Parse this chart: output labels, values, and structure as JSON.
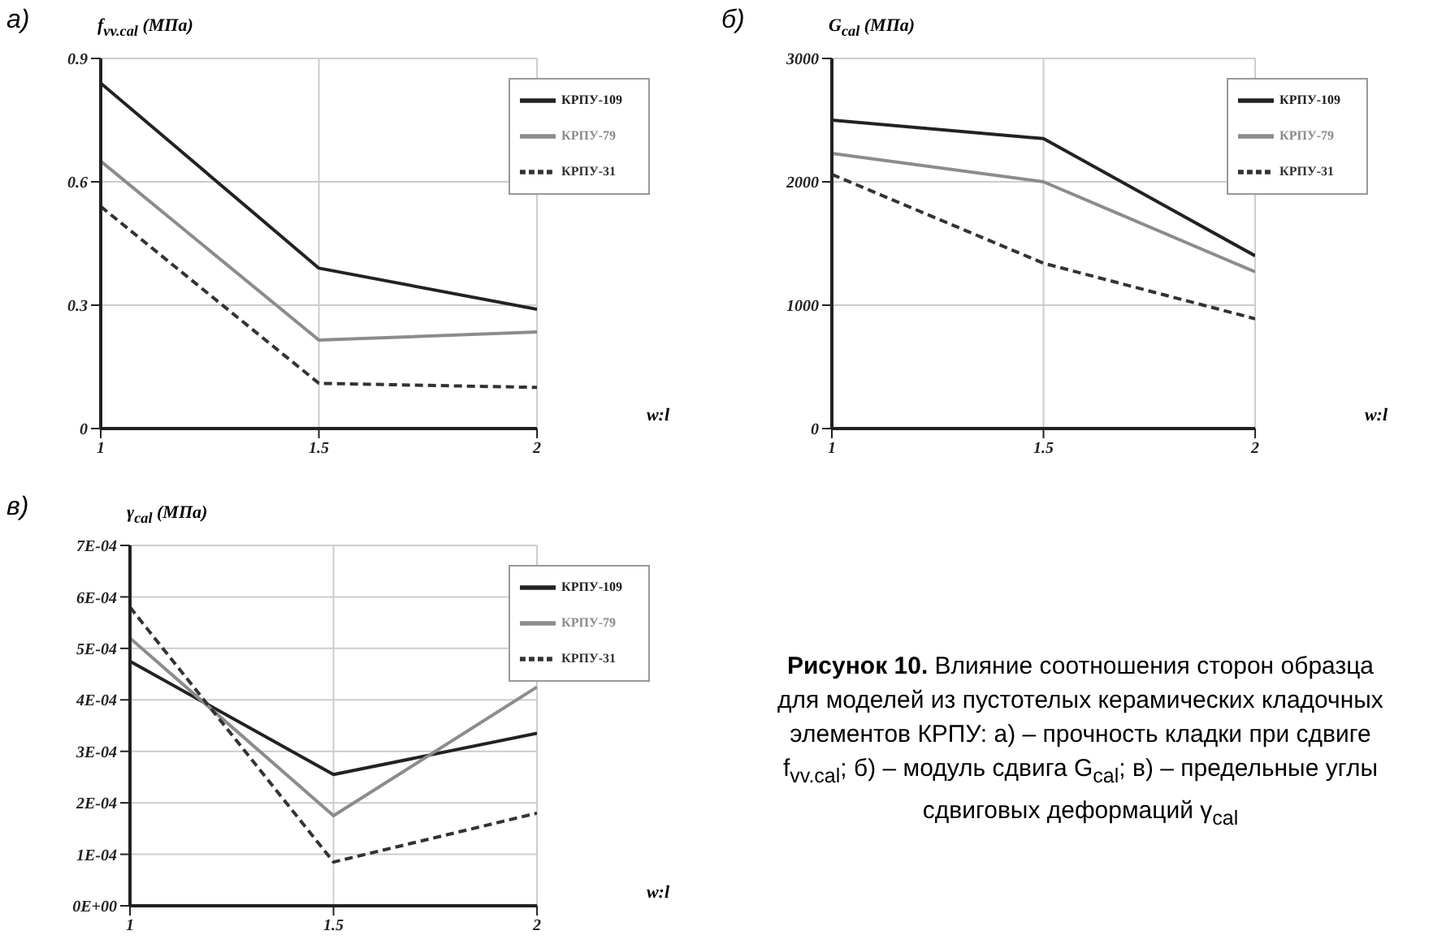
{
  "chart_data": [
    {
      "type": "line",
      "title": "а)",
      "ylabel": "f$_{vv.cal}$ (МПа)",
      "xlabel": "w:l",
      "x": [
        1,
        1.5,
        2
      ],
      "xlim": [
        1,
        2
      ],
      "xticks": [
        1,
        1.5,
        2
      ],
      "ylim": [
        0,
        0.9
      ],
      "yticks": [
        0,
        0.3,
        0.6,
        0.9
      ],
      "grid": true,
      "legend": "top right",
      "marker": "none",
      "series": [
        {
          "name": "КРПУ-109",
          "color": "#222222",
          "line_style": "solid",
          "values": [
            0.84,
            0.39,
            0.29
          ]
        },
        {
          "name": "КРПУ-79",
          "color": "#8c8c8c",
          "line_style": "solid",
          "values": [
            0.65,
            0.215,
            0.235
          ]
        },
        {
          "name": "КРПУ-31",
          "color": "#333333",
          "line_style": "dashed",
          "values": [
            0.54,
            0.11,
            0.1
          ]
        }
      ]
    },
    {
      "type": "line",
      "title": "б)",
      "ylabel": "G$_{cal}$ (МПа)",
      "xlabel": "w:l",
      "x": [
        1,
        1.5,
        2
      ],
      "xlim": [
        1,
        2
      ],
      "xticks": [
        1,
        1.5,
        2
      ],
      "ylim": [
        0,
        3000
      ],
      "yticks": [
        0,
        1000,
        2000,
        3000
      ],
      "grid": true,
      "legend": "top right",
      "marker": "none",
      "series": [
        {
          "name": "КРПУ-109",
          "color": "#222222",
          "line_style": "solid",
          "values": [
            2500,
            2350,
            1400
          ]
        },
        {
          "name": "КРПУ-79",
          "color": "#8c8c8c",
          "line_style": "solid",
          "values": [
            2230,
            2000,
            1270
          ]
        },
        {
          "name": "КРПУ-31",
          "color": "#333333",
          "line_style": "dashed",
          "values": [
            2060,
            1340,
            890
          ]
        }
      ]
    },
    {
      "type": "line",
      "title": "в)",
      "ylabel": "γ$_{cal}$ (МПа)",
      "xlabel": "w:l",
      "x": [
        1,
        1.5,
        2
      ],
      "xlim": [
        1,
        2
      ],
      "xticks": [
        1,
        1.5,
        2
      ],
      "ylim": [
        0,
        0.0007
      ],
      "yticks": [
        {
          "value": 0,
          "label": "0E+00"
        },
        {
          "value": 0.0001,
          "label": "1E-04"
        },
        {
          "value": 0.0002,
          "label": "2E-04"
        },
        {
          "value": 0.0003,
          "label": "3E-04"
        },
        {
          "value": 0.0004,
          "label": "4E-04"
        },
        {
          "value": 0.0005,
          "label": "5E-04"
        },
        {
          "value": 0.0006,
          "label": "6E-04"
        },
        {
          "value": 0.0007,
          "label": "7E-04"
        }
      ],
      "grid": true,
      "legend": "top right",
      "marker": "none",
      "series": [
        {
          "name": "КРПУ-109",
          "color": "#222222",
          "line_style": "solid",
          "values": [
            0.000475,
            0.000255,
            0.000335
          ]
        },
        {
          "name": "КРПУ-79",
          "color": "#8c8c8c",
          "line_style": "solid",
          "values": [
            0.00052,
            0.000175,
            0.000425
          ]
        },
        {
          "name": "КРПУ-31",
          "color": "#333333",
          "line_style": "dashed",
          "values": [
            0.00058,
            8.5e-05,
            0.00018
          ]
        }
      ]
    },
    {
      "type": "other",
      "title": "Рисунок 10.",
      "annotations": [
        "Влияние соотношения сторон образца для моделей из пустотелых керамических кладочных элементов КРПУ: а) – прочность кладки при сдвиге f$_{vv.cal}$; б) – модуль сдвига G$_{cal}$; в) – предельные углы сдвиговых деформаций γ$_{cal}$"
      ]
    }
  ]
}
